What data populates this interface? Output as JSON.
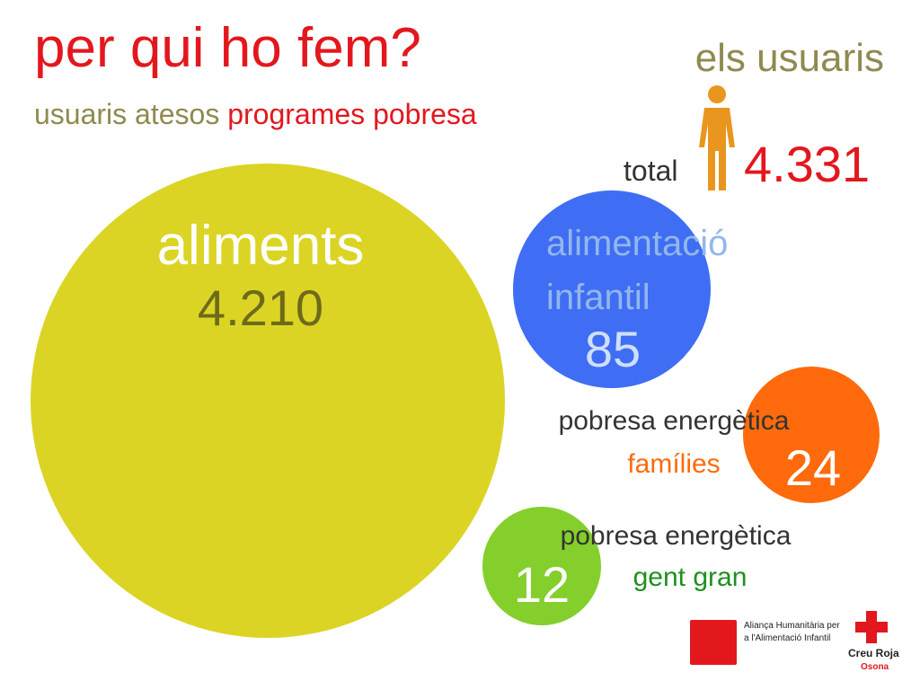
{
  "header": {
    "title": "per qui ho fem?",
    "subtitle_part1": "usuaris atesos",
    "subtitle_part2": "programes pobresa"
  },
  "users": {
    "heading": "els usuaris",
    "total_label": "total",
    "total_value": "4.331",
    "icon": "person-icon"
  },
  "chart_data": {
    "type": "bubble",
    "title": "",
    "series": [
      {
        "name": "aliments",
        "value": 4210,
        "display": "4.210",
        "label_line1": "aliments",
        "label_line2": "",
        "color": "#dbd424",
        "value_color": "#6e6a1a"
      },
      {
        "name": "alimentació infantil",
        "value": 85,
        "display": "85",
        "label_line1": "alimentació",
        "label_line2": "infantil",
        "color": "#3f6ef5",
        "value_color": "#cfe0ff"
      },
      {
        "name": "pobresa energètica famílies",
        "value": 24,
        "display": "24",
        "label_line1": "pobresa energètica",
        "label_line2": "famílies",
        "color": "#ff6a0c",
        "value_color": "#ffffff"
      },
      {
        "name": "pobresa energètica gent gran",
        "value": 12,
        "display": "12",
        "label_line1": "pobresa energètica",
        "label_line2": "gent gran",
        "color": "#84cf2c",
        "value_color": "#ffffff"
      }
    ]
  },
  "footer": {
    "alianca_text": "Aliança Humanitària per a l'Alimentació Infantil",
    "creu_roja_name": "Creu Roja",
    "creu_roja_sub": "Osona"
  }
}
